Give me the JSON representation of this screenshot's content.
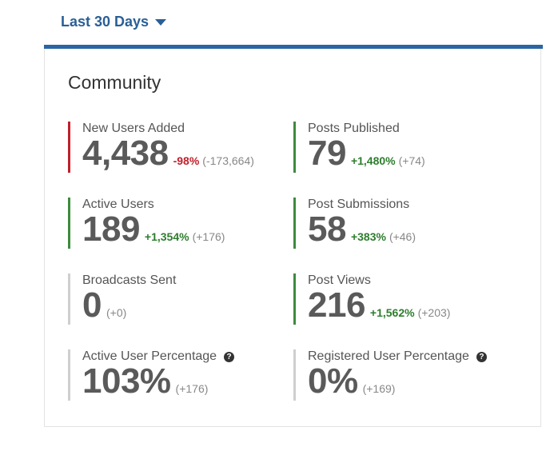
{
  "range": {
    "label": "Last 30 Days"
  },
  "card": {
    "title": "Community"
  },
  "metrics": {
    "new_users": {
      "label": "New Users Added",
      "value": "4,438",
      "pct": "-98%",
      "abs": "(-173,664)"
    },
    "posts_published": {
      "label": "Posts Published",
      "value": "79",
      "pct": "+1,480%",
      "abs": "(+74)"
    },
    "active_users": {
      "label": "Active Users",
      "value": "189",
      "pct": "+1,354%",
      "abs": "(+176)"
    },
    "post_submissions": {
      "label": "Post Submissions",
      "value": "58",
      "pct": "+383%",
      "abs": "(+46)"
    },
    "broadcasts_sent": {
      "label": "Broadcasts Sent",
      "value": "0",
      "abs": "(+0)"
    },
    "post_views": {
      "label": "Post Views",
      "value": "216",
      "pct": "+1,562%",
      "abs": "(+203)"
    },
    "active_user_pct": {
      "label": "Active User Percentage",
      "value": "103%",
      "abs": "(+176)"
    },
    "registered_user_pct": {
      "label": "Registered User Percentage",
      "value": "0%",
      "abs": "(+169)"
    }
  },
  "icons": {
    "help": "?"
  },
  "colors": {
    "accent": "#2a65a3",
    "negative": "#c0202b",
    "positive": "#2e7d2e",
    "neutral": "#cfcfcf"
  }
}
